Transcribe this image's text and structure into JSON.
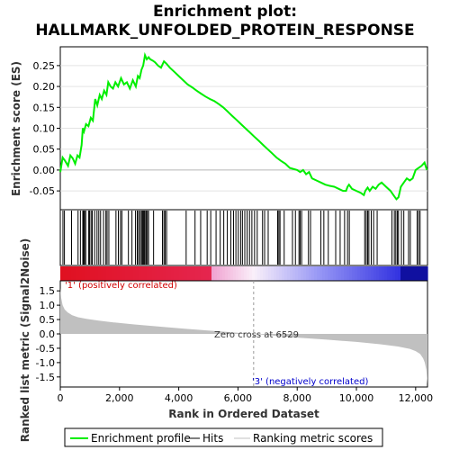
{
  "title_line1": "Enrichment plot:",
  "title_line2": "HALLMARK_UNFOLDED_PROTEIN_RESPONSE",
  "colors": {
    "profile": "#00ee00",
    "hits": "#000000",
    "metric_fill": "#c0c0c0",
    "positive_label": "#d00000",
    "negative_label": "#0000cc",
    "heat_red": "#e01020",
    "heat_pink": "#f0a0d0",
    "heat_blue": "#3030e0",
    "heat_navy": "#1010a0"
  },
  "chart_data": [
    {
      "type": "line",
      "name": "enrichment-profile",
      "ylabel": "Enrichment score (ES)",
      "xlim": [
        0,
        12400
      ],
      "ylim": [
        -0.095,
        0.295
      ],
      "yticks": [
        0.25,
        0.2,
        0.15,
        0.1,
        0.05,
        0.0,
        -0.05
      ],
      "ytick_labels": [
        "0.25",
        "0.20",
        "0.15",
        "0.10",
        "0.05",
        "0.00",
        "-0.05"
      ],
      "series": [
        {
          "name": "Enrichment profile",
          "x": [
            0,
            80,
            160,
            260,
            340,
            420,
            500,
            580,
            650,
            720,
            760,
            800,
            870,
            950,
            1030,
            1100,
            1180,
            1250,
            1330,
            1400,
            1480,
            1560,
            1620,
            1700,
            1780,
            1860,
            1950,
            2050,
            2150,
            2250,
            2350,
            2450,
            2550,
            2620,
            2680,
            2740,
            2800,
            2860,
            2920,
            2980,
            3040,
            3120,
            3200,
            3300,
            3400,
            3500,
            3580,
            3700,
            3850,
            4000,
            4150,
            4300,
            4450,
            4600,
            4750,
            4900,
            5050,
            5200,
            5350,
            5500,
            5650,
            5800,
            5950,
            6100,
            6250,
            6400,
            6550,
            6700,
            6850,
            7000,
            7150,
            7300,
            7450,
            7600,
            7750,
            7900,
            8000,
            8100,
            8200,
            8300,
            8400,
            8500,
            8650,
            8800,
            8950,
            9100,
            9250,
            9400,
            9550,
            9650,
            9700,
            9750,
            9850,
            10000,
            10150,
            10250,
            10300,
            10380,
            10450,
            10550,
            10650,
            10750,
            10850,
            11000,
            11150,
            11250,
            11300,
            11350,
            11420,
            11500,
            11600,
            11700,
            11800,
            11900,
            12000,
            12100,
            12200,
            12300,
            12380
          ],
          "y": [
            -0.005,
            0.03,
            0.022,
            0.01,
            0.035,
            0.028,
            0.015,
            0.035,
            0.03,
            0.06,
            0.1,
            0.092,
            0.11,
            0.105,
            0.125,
            0.118,
            0.17,
            0.155,
            0.18,
            0.17,
            0.19,
            0.18,
            0.21,
            0.2,
            0.195,
            0.21,
            0.2,
            0.22,
            0.205,
            0.21,
            0.195,
            0.215,
            0.2,
            0.225,
            0.22,
            0.24,
            0.25,
            0.275,
            0.265,
            0.27,
            0.265,
            0.262,
            0.258,
            0.25,
            0.245,
            0.26,
            0.255,
            0.245,
            0.235,
            0.225,
            0.215,
            0.205,
            0.198,
            0.19,
            0.183,
            0.176,
            0.17,
            0.165,
            0.158,
            0.15,
            0.14,
            0.13,
            0.12,
            0.11,
            0.1,
            0.09,
            0.08,
            0.07,
            0.06,
            0.05,
            0.04,
            0.03,
            0.022,
            0.015,
            0.005,
            0.002,
            0.0,
            -0.005,
            0.0,
            -0.01,
            -0.005,
            -0.02,
            -0.025,
            -0.03,
            -0.035,
            -0.038,
            -0.04,
            -0.045,
            -0.05,
            -0.05,
            -0.04,
            -0.035,
            -0.045,
            -0.05,
            -0.055,
            -0.06,
            -0.05,
            -0.042,
            -0.05,
            -0.04,
            -0.045,
            -0.035,
            -0.03,
            -0.04,
            -0.05,
            -0.06,
            -0.065,
            -0.07,
            -0.065,
            -0.04,
            -0.03,
            -0.02,
            -0.025,
            -0.02,
            0.0,
            0.005,
            0.01,
            0.018,
            0.0
          ]
        }
      ]
    },
    {
      "type": "bar",
      "name": "hits",
      "xlim": [
        0,
        12400
      ],
      "series": [
        {
          "name": "Hits",
          "positions": [
            90,
            140,
            380,
            600,
            680,
            760,
            790,
            820,
            860,
            960,
            990,
            1040,
            1080,
            1160,
            1240,
            1300,
            1360,
            1460,
            1540,
            1580,
            1640,
            1880,
            1960,
            2030,
            2080,
            2300,
            2420,
            2540,
            2600,
            2640,
            2690,
            2740,
            2770,
            2800,
            2830,
            2860,
            2900,
            2940,
            2980,
            3150,
            3450,
            3500,
            3540,
            3590,
            4250,
            4550,
            4740,
            4960,
            5080,
            5260,
            5400,
            5520,
            5640,
            5760,
            5850,
            5930,
            6010,
            6090,
            6150,
            6230,
            6310,
            6390,
            6470,
            6560,
            6650,
            6830,
            6900,
            7020,
            7340,
            7380,
            7420,
            7560,
            7840,
            7940,
            8060,
            8100,
            8150,
            8380,
            8450,
            8800,
            8900,
            9050,
            9300,
            9450,
            9600,
            9700,
            9760,
            10280,
            10330,
            10380,
            10420,
            10500,
            10580,
            10700,
            11200,
            11280,
            11330,
            11380,
            11420,
            11520,
            11600,
            11760,
            11820,
            12050,
            12100,
            12150
          ]
        }
      ]
    },
    {
      "type": "area",
      "name": "ranked-list-metric",
      "xlabel": "Rank in Ordered Dataset",
      "ylabel": "Ranked list metric (Signal2Noise)",
      "xlim": [
        0,
        12400
      ],
      "ylim": [
        -1.85,
        1.85
      ],
      "xticks": [
        0,
        2000,
        4000,
        6000,
        8000,
        10000,
        12000
      ],
      "xtick_labels": [
        "0",
        "2,000",
        "4,000",
        "6,000",
        "8,000",
        "10,000",
        "12,000"
      ],
      "yticks": [
        1.5,
        1.0,
        0.5,
        0.0,
        -0.5,
        -1.0,
        -1.5
      ],
      "ytick_labels": [
        "1.5",
        "1.0",
        "0.5",
        "0.0",
        "-0.5",
        "-1.0",
        "-1.5"
      ],
      "series": [
        {
          "name": "Ranking metric scores",
          "x": [
            0,
            30,
            80,
            150,
            250,
            400,
            600,
            900,
            1300,
            1800,
            2500,
            3300,
            4200,
            5200,
            6000,
            6529,
            7200,
            8000,
            9000,
            10000,
            10800,
            11400,
            11800,
            12000,
            12150,
            12250,
            12310,
            12360,
            12400
          ],
          "y": [
            1.6,
            1.25,
            1.0,
            0.85,
            0.75,
            0.65,
            0.58,
            0.52,
            0.46,
            0.4,
            0.33,
            0.26,
            0.18,
            0.1,
            0.04,
            0.0,
            -0.06,
            -0.13,
            -0.2,
            -0.28,
            -0.36,
            -0.44,
            -0.52,
            -0.6,
            -0.7,
            -0.85,
            -1.0,
            -1.25,
            -1.75
          ]
        }
      ],
      "zero_cross": 6529,
      "annotations": [
        "Zero cross at 6529",
        "'1' (positively correlated)",
        "'3' (negatively correlated)"
      ]
    }
  ],
  "labels": {
    "es_axis": "Enrichment score (ES)",
    "metric_axis": "Ranked list metric (Signal2Noise)",
    "x_axis": "Rank in Ordered Dataset",
    "zero_cross": "Zero cross at 6529",
    "positive": "'1' (positively correlated)",
    "negative": "'3' (negatively correlated)"
  },
  "legend": {
    "profile_label": "Enrichment profile",
    "hits_label": "Hits",
    "metric_label": "Ranking metric scores"
  }
}
